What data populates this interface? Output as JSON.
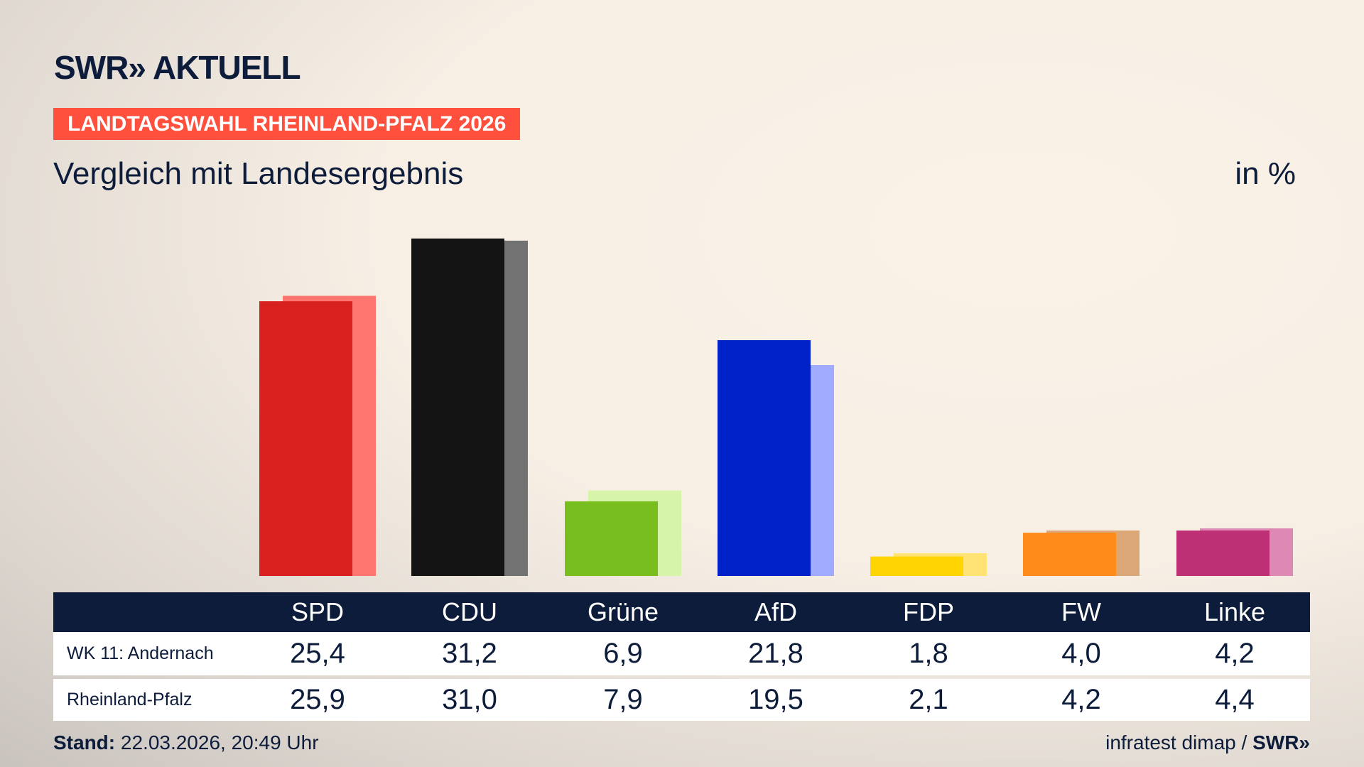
{
  "header": {
    "logo": "SWR» AKTUELL",
    "label": "LANDTAGSWAHL RHEINLAND-PFALZ 2026",
    "subtitle": "Vergleich mit Landesergebnis",
    "unit": "in %"
  },
  "chart_data": {
    "type": "bar",
    "categories": [
      "SPD",
      "CDU",
      "Grüne",
      "AfD",
      "FDP",
      "FW",
      "Linke"
    ],
    "series": [
      {
        "name": "WK 11: Andernach",
        "values": [
          25.4,
          31.2,
          6.9,
          21.8,
          1.8,
          4.0,
          4.2
        ],
        "labels": [
          "25,4",
          "31,2",
          "6,9",
          "21,8",
          "1,8",
          "4,0",
          "4,2"
        ]
      },
      {
        "name": "Rheinland-Pfalz",
        "values": [
          25.9,
          31.0,
          7.9,
          19.5,
          2.1,
          4.2,
          4.4
        ],
        "labels": [
          "25,9",
          "31,0",
          "7,9",
          "19,5",
          "2,1",
          "4,2",
          "4,4"
        ]
      }
    ],
    "colors_primary": [
      "#d8201f",
      "#141414",
      "#78be1e",
      "#0021c8",
      "#ffd400",
      "#ff8c1a",
      "#be3075"
    ],
    "colors_secondary": [
      "#ff7670",
      "#727272",
      "#d6f5a8",
      "#a0aaff",
      "#ffe375",
      "#dca776",
      "#de88b4"
    ],
    "ylim": [
      0,
      32
    ],
    "grid": false
  },
  "footer": {
    "stand_label": "Stand:",
    "stand_value": "22.03.2026, 20:49 Uhr",
    "source": "infratest dimap /",
    "source_logo": "SWR»"
  }
}
